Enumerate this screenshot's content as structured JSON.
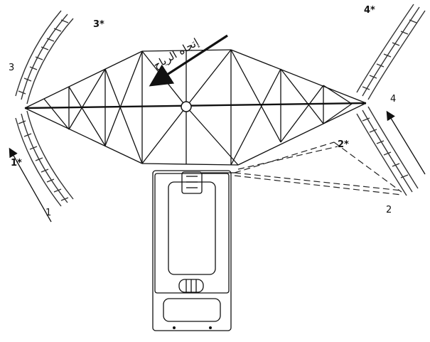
{
  "diagram": {
    "wind_label": "إتجاه الرياح",
    "labels": {
      "n1": "1",
      "n1p": "1*",
      "n2": "2",
      "n2p": "2*",
      "n3": "3",
      "n3p": "3*",
      "n4": "4",
      "n4p": "4*"
    }
  }
}
